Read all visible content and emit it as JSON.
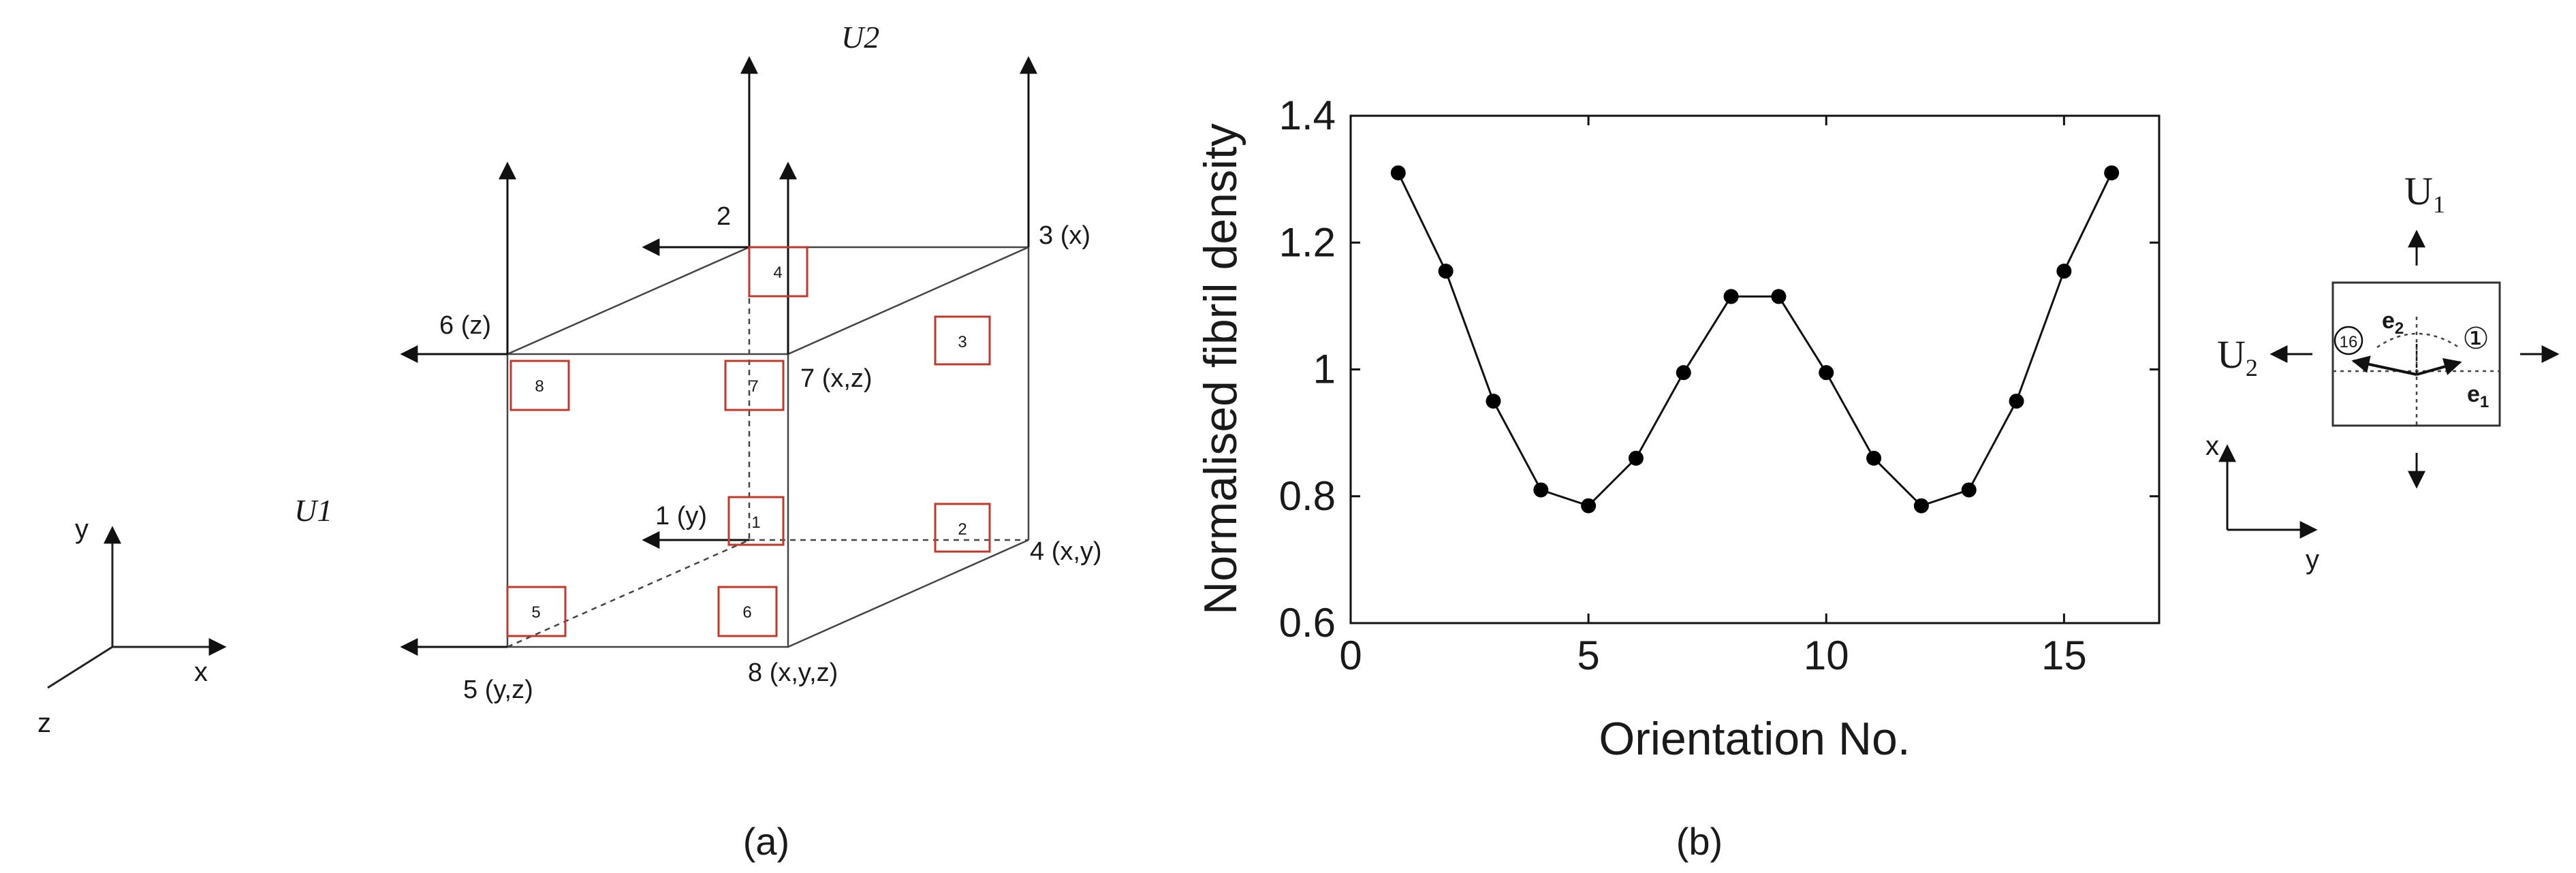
{
  "panel_a": {
    "caption": "(a)",
    "force_labels": {
      "u1": "U1",
      "u2": "U2"
    },
    "coordinate_axes": {
      "x": "x",
      "y": "y",
      "z": "z"
    },
    "corner_labels": {
      "c1": "1 (y)",
      "c2": "2",
      "c3": "3 (x)",
      "c4": "4 (x,y)",
      "c5": "5 (y,z)",
      "c6": "6 (z)",
      "c7": "7 (x,z)",
      "c8": "8 (x,y,z)"
    },
    "integration_points": [
      "1",
      "2",
      "3",
      "4",
      "5",
      "6",
      "7",
      "8"
    ],
    "colors": {
      "integration_box": "#c0392b",
      "line": "#333333"
    }
  },
  "panel_b": {
    "caption": "(b)",
    "chart_data": {
      "type": "line",
      "title": "",
      "xlabel": "Orientation No.",
      "ylabel": "Normalised fibril density",
      "x": [
        1,
        2,
        3,
        4,
        5,
        6,
        7,
        8,
        9,
        10,
        11,
        12,
        13,
        14,
        15,
        16
      ],
      "series": [
        {
          "name": "Normalised fibril density",
          "values": [
            1.31,
            1.155,
            0.95,
            0.81,
            0.785,
            0.86,
            0.995,
            1.115,
            1.115,
            0.995,
            0.86,
            0.785,
            0.81,
            0.95,
            1.155,
            1.31
          ]
        }
      ],
      "xlim": [
        0,
        17
      ],
      "ylim": [
        0.6,
        1.4
      ],
      "xticks": [
        "0",
        "5",
        "10",
        "15"
      ],
      "yticks": [
        "0.6",
        "0.8",
        "1",
        "1.2",
        "1.4"
      ],
      "grid": false,
      "marker": "filled-circle",
      "color": "#000000"
    }
  },
  "panel_c": {
    "u1": "U",
    "u1_sub": "1",
    "u2": "U",
    "u2_sub": "2",
    "e1": "e",
    "e1_sub": "1",
    "e2": "e",
    "e2_sub": "2",
    "orient_first": "①",
    "orient_last": "16",
    "axis_x": "x",
    "axis_y": "y"
  }
}
